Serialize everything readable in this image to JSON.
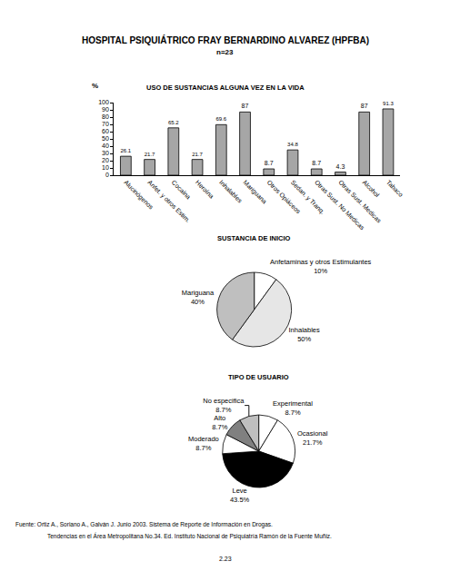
{
  "page": {
    "title": "HOSPITAL PSIQUIÁTRICO FRAY BERNARDINO ALVAREZ (HPFBA)",
    "subtitle": "n=23",
    "source": [
      "Fuente: Ortiz A., Soriano A., Galván J. Junio 2003. Sistema de Reporte de Información en Drogas.",
      "Tendencias en el Área Metropolitana No.34. Ed. Instituto Nacional de Psiquiatría Ramón de la Fuente Muñiz."
    ],
    "page_number": "2.23"
  },
  "chart_data": [
    {
      "type": "bar",
      "title": "USO DE SUSTANCIAS ALGUNA VEZ EN LA VIDA",
      "ylabel": "%",
      "categories": [
        "Alucinógenos",
        "Anfet. y otros Estim.",
        "Cocaína",
        "Heroína",
        "Inhalables",
        "Mariguana",
        "Otros Opiáceos",
        "Sedan. y Tranq.",
        "Otras Sust. No Medicas",
        "Otras Sust. Medicas",
        "Alcohol",
        "Tabaco"
      ],
      "values": [
        26.1,
        21.7,
        65.2,
        21.7,
        69.6,
        87,
        8.7,
        34.8,
        8.7,
        4.3,
        87,
        91.3
      ],
      "color": "#a6a6a6",
      "ylim": [
        0,
        100
      ],
      "yticks": [
        0,
        10,
        20,
        30,
        40,
        50,
        60,
        70,
        80,
        90,
        100
      ],
      "grid": false,
      "data_labels": true
    },
    {
      "type": "pie",
      "title": "SUSTANCIA DE INICIO",
      "categories": [
        "Anfetaminas y otros Estimulantes",
        "Inhalables",
        "Mariguana"
      ],
      "values": [
        10,
        50,
        40
      ],
      "value_labels": [
        "10%",
        "50%",
        "40%"
      ],
      "colors": [
        "#ffffff",
        "#e6e6e6",
        "#bfbfbf"
      ],
      "data_labels": true
    },
    {
      "type": "pie",
      "title": "TIPO DE USUARIO",
      "categories": [
        "Experimental",
        "Ocasional",
        "Leve",
        "Moderado",
        "Alto",
        "No especifica"
      ],
      "values": [
        8.7,
        21.7,
        43.5,
        8.7,
        8.7,
        8.7
      ],
      "value_labels": [
        "8.7%",
        "21.7%",
        "43.5%",
        "8.7%",
        "8.7%",
        "8.7%"
      ],
      "colors": [
        "#ffffff",
        "#ffffff",
        "#000000",
        "#ffffff",
        "#808080",
        "#bfbfbf"
      ],
      "data_labels": true
    }
  ]
}
